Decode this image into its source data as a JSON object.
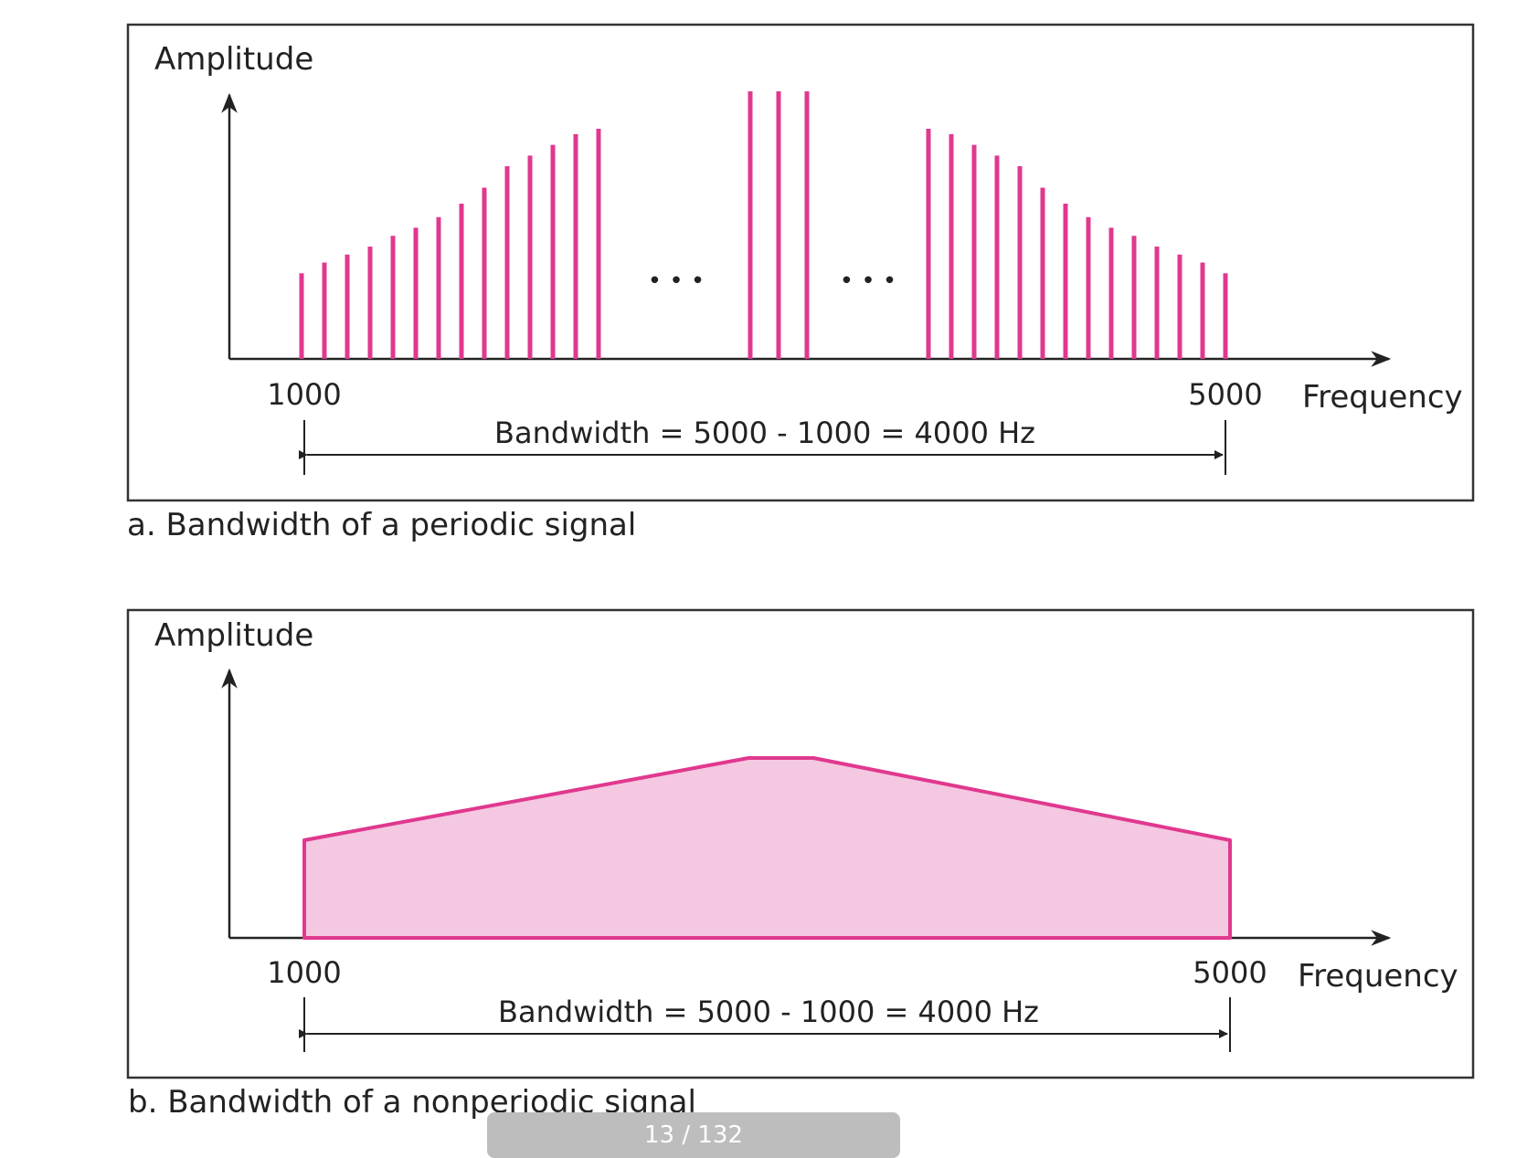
{
  "colors": {
    "accent": "#e0388f",
    "fill": "#f4c8e0",
    "ink": "#222222",
    "frame": "#333333",
    "indicator_bg": "#bdbdbd"
  },
  "panel_a": {
    "y_label": "Amplitude",
    "x_label": "Frequency",
    "tick_start": "1000",
    "tick_end": "5000",
    "bandwidth_label": "Bandwidth = 5000 - 1000 = 4000 Hz",
    "caption": "a. Bandwidth of a periodic signal",
    "ellipsis_left": "• • •",
    "ellipsis_right": "• • •"
  },
  "panel_b": {
    "y_label": "Amplitude",
    "x_label": "Frequency",
    "tick_start": "1000",
    "tick_end": "5000",
    "bandwidth_label": "Bandwidth = 5000 - 1000 = 4000 Hz",
    "caption": "b. Bandwidth of a nonperiodic signal"
  },
  "viewer": {
    "page_indicator": "13 / 132"
  },
  "chart_data": [
    {
      "type": "bar",
      "description_values_relative_amplitude": true,
      "x_range": [
        1000,
        5000
      ],
      "groups": [
        {
          "values": [
            0.32,
            0.36,
            0.39,
            0.42,
            0.46,
            0.49,
            0.53,
            0.58,
            0.64,
            0.72,
            0.76,
            0.8,
            0.84,
            0.86
          ]
        },
        {
          "values": [
            1.0,
            1.0,
            1.0
          ]
        },
        {
          "values": [
            0.86,
            0.84,
            0.8,
            0.76,
            0.72,
            0.64,
            0.58,
            0.53,
            0.49,
            0.46,
            0.42,
            0.39,
            0.36,
            0.32
          ]
        }
      ]
    },
    {
      "type": "area",
      "x": [
        1000,
        2920,
        3200,
        5000
      ],
      "y": [
        0.55,
        1.0,
        1.0,
        0.55
      ],
      "x_range": [
        1000,
        5000
      ]
    }
  ]
}
